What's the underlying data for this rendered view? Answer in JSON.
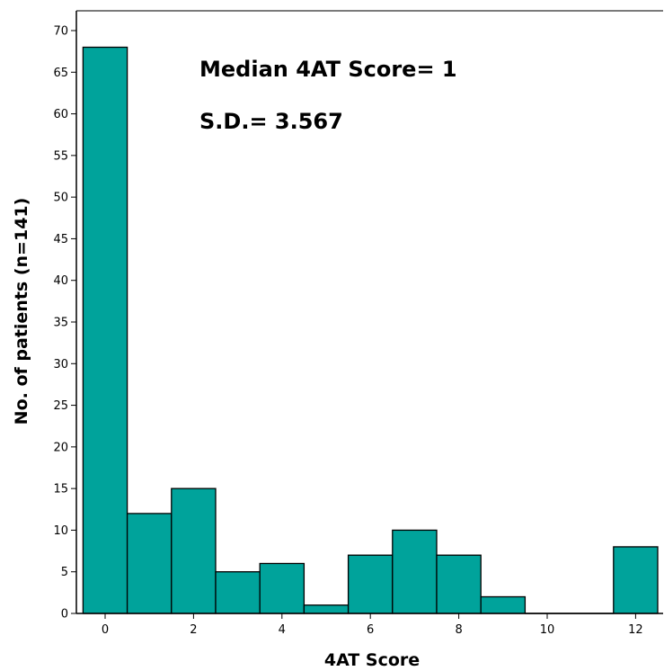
{
  "chart_data": {
    "type": "bar",
    "xlabel": "4AT Score",
    "ylabel": "No. of patients (n=141)",
    "ylim": [
      0,
      70
    ],
    "xlim": [
      -0.5,
      12.5
    ],
    "y_ticks": [
      0,
      5,
      10,
      15,
      20,
      25,
      30,
      35,
      40,
      45,
      50,
      55,
      60,
      65,
      70
    ],
    "x_ticks": [
      0,
      2,
      4,
      6,
      8,
      10,
      12
    ],
    "x": [
      0,
      1,
      2,
      3,
      4,
      5,
      6,
      7,
      8,
      9,
      10,
      11,
      12
    ],
    "values": [
      68,
      12,
      15,
      5,
      6,
      1,
      7,
      10,
      7,
      2,
      0,
      0,
      8
    ],
    "bar_color": "#00a39b",
    "annotations": [
      "Median 4AT Score= 1",
      "S.D.= 3.567"
    ],
    "grid": false
  }
}
